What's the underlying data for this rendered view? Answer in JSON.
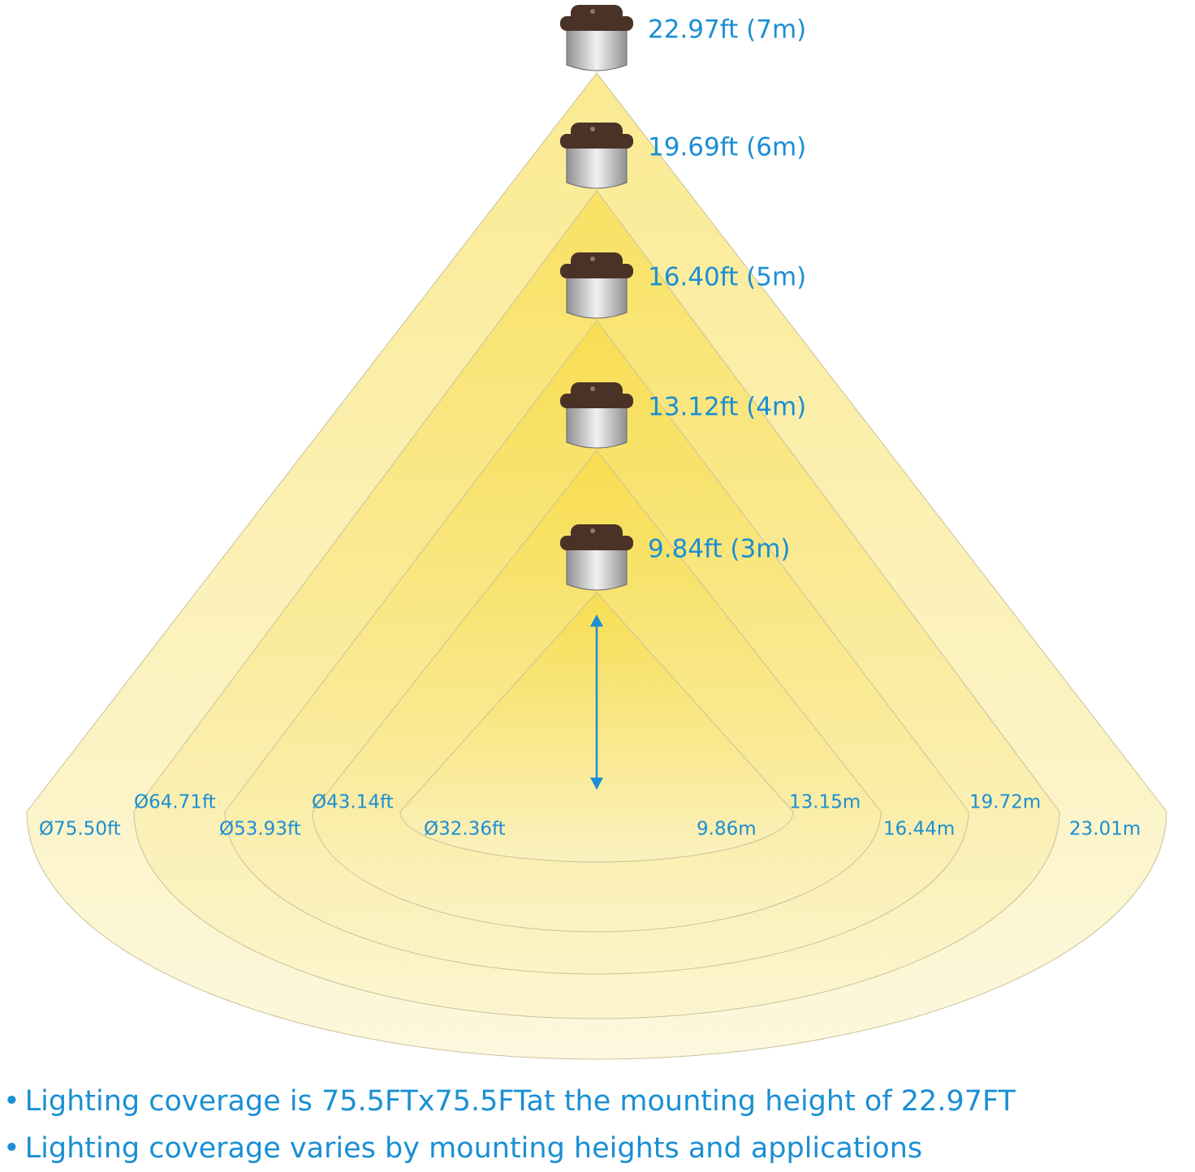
{
  "lights": [
    {
      "height": "22.97ft (7m)",
      "diameter_ft": "Ø75.50ft",
      "diameter_m": "23.01m"
    },
    {
      "height": "19.69ft (6m)",
      "diameter_ft": "Ø64.71ft",
      "diameter_m": "19.72m"
    },
    {
      "height": "16.40ft (5m)",
      "diameter_ft": "Ø53.93ft",
      "diameter_m": "16.44m"
    },
    {
      "height": "13.12ft (4m)",
      "diameter_ft": "Ø43.14ft",
      "diameter_m": "13.15m"
    },
    {
      "height": "9.84ft (3m)",
      "diameter_ft": "Ø32.36ft",
      "diameter_m": "9.86m"
    }
  ],
  "notes": [
    "Lighting coverage is 75.5FTx75.5FTat the mounting height of 22.97FT",
    "Lighting coverage varies by mounting heights and applications"
  ]
}
